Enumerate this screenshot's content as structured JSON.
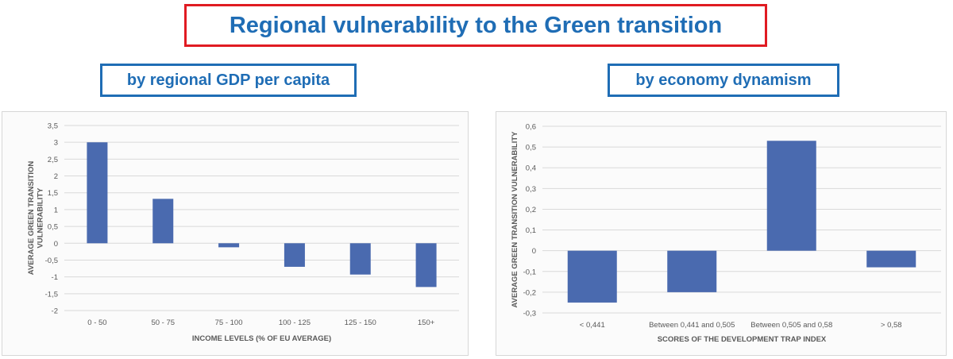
{
  "title": "Regional vulnerability to the Green transition",
  "subtitle_left": "by regional GDP per capita",
  "subtitle_right": "by economy dynamism",
  "colors": {
    "bar": "#4a6aaf",
    "title_text": "#1f6db5",
    "title_border": "#e01b22",
    "subtitle_border": "#1f6db5",
    "grid": "#d9d9d9"
  },
  "chart_data": [
    {
      "type": "bar",
      "categories": [
        "0 - 50",
        "50 - 75",
        "75 - 100",
        "100 - 125",
        "125 - 150",
        "150+"
      ],
      "values": [
        3.0,
        1.32,
        -0.12,
        -0.7,
        -0.93,
        -1.3
      ],
      "xlabel": "INCOME LEVELS (% OF EU AVERAGE)",
      "ylabel": "AVERAGE GREEN TRANSITION VULNERABILITY",
      "ylim": [
        -2,
        3.5
      ],
      "yticks": [
        -2,
        -1.5,
        -1,
        -0.5,
        0,
        0.5,
        1,
        1.5,
        2,
        2.5,
        3,
        3.5
      ],
      "ytick_labels": [
        "-2",
        "-1,5",
        "-1",
        "-0,5",
        "0",
        "0,5",
        "1",
        "1,5",
        "2",
        "2,5",
        "3",
        "3,5"
      ],
      "grid": true
    },
    {
      "type": "bar",
      "categories": [
        "< 0,441",
        "Between 0,441 and 0,505",
        "Between 0,505 and 0,58",
        "> 0,58"
      ],
      "values": [
        -0.25,
        -0.2,
        0.53,
        -0.08
      ],
      "xlabel": "SCORES OF THE DEVELOPMENT TRAP INDEX",
      "ylabel": "AVERAGE GREEN TRANSITION VULNERABILITY",
      "ylim": [
        -0.3,
        0.6
      ],
      "yticks": [
        -0.3,
        -0.2,
        -0.1,
        0,
        0.1,
        0.2,
        0.3,
        0.4,
        0.5,
        0.6
      ],
      "ytick_labels": [
        "-0,3",
        "-0,2",
        "-0,1",
        "0",
        "0,1",
        "0,2",
        "0,3",
        "0,4",
        "0,5",
        "0,6"
      ],
      "grid": true
    }
  ]
}
